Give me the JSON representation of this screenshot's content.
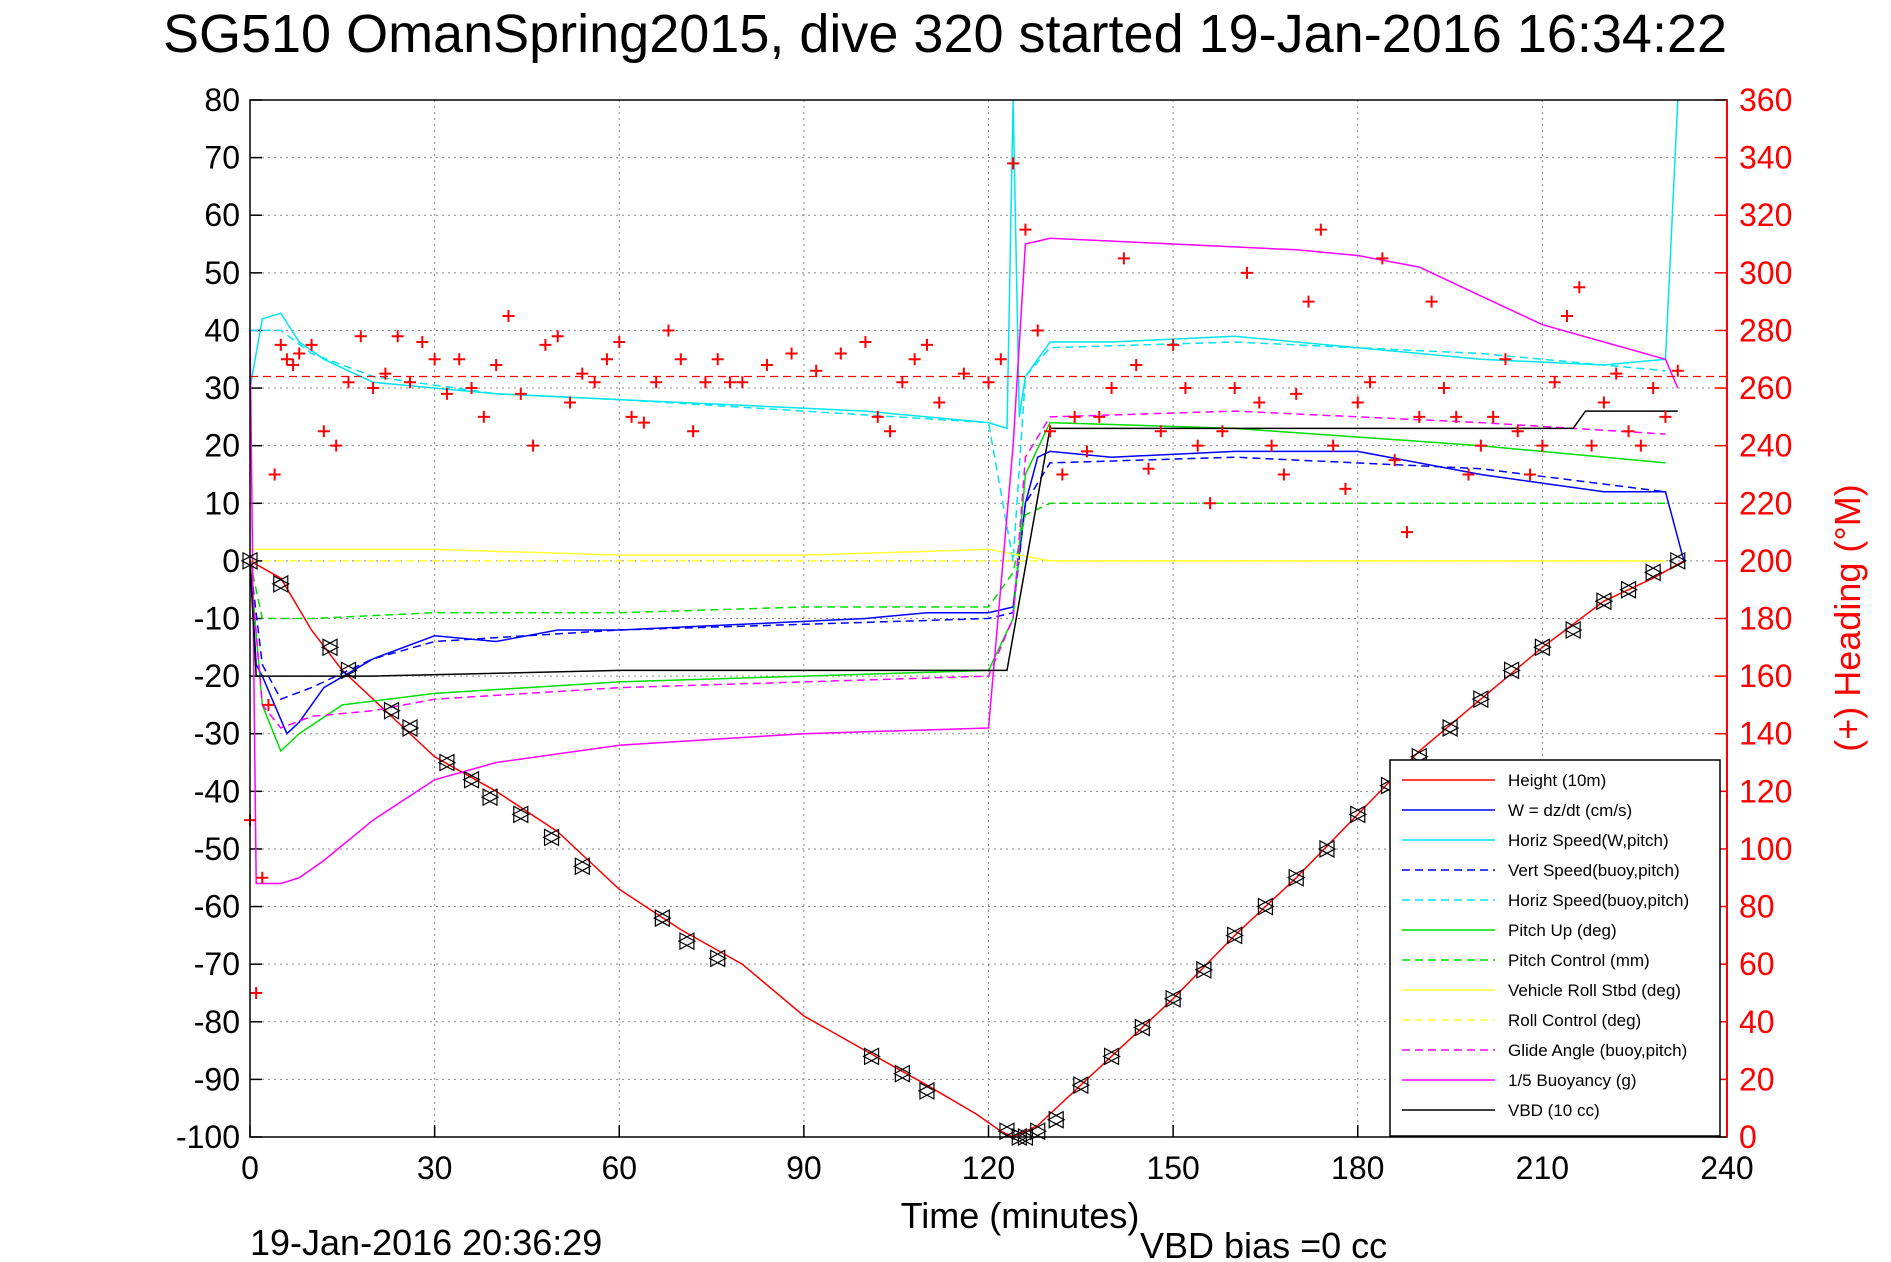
{
  "chart_data": {
    "type": "line",
    "title": "SG510 OmanSpring2015, dive 320 started 19-Jan-2016 16:34:22",
    "xlabel": "Time (minutes)",
    "ylabel_right": "(+) Heading (°M)",
    "xlim": [
      0,
      240
    ],
    "ylim_left": [
      -100,
      80
    ],
    "ylim_right": [
      0,
      360
    ],
    "x_ticks": [
      "0",
      "30",
      "60",
      "90",
      "120",
      "150",
      "180",
      "210",
      "240"
    ],
    "y_left_ticks": [
      "80",
      "70",
      "60",
      "50",
      "40",
      "30",
      "20",
      "10",
      "0",
      "-10",
      "-20",
      "-30",
      "-40",
      "-50",
      "-60",
      "-70",
      "-80",
      "-90",
      "-100"
    ],
    "y_right_ticks": [
      "360",
      "340",
      "320",
      "300",
      "280",
      "260",
      "240",
      "220",
      "200",
      "180",
      "160",
      "140",
      "120",
      "100",
      "80",
      "60",
      "40",
      "20",
      "0"
    ],
    "grid": true,
    "legend_position": "bottom-right",
    "colors": {
      "height": "#ff0000",
      "w": "#0000ff",
      "horiz_w": "#00e5ee",
      "vert_buoy": "#0000ff",
      "horiz_buoy": "#00e5ee",
      "pitch": "#00dd00",
      "pitch_ctl": "#00dd00",
      "roll": "#ffff33",
      "roll_ctl": "#ffff33",
      "glide": "#ff00ff",
      "buoy": "#ff00ff",
      "vbd": "#000000",
      "heading": "#ff0000"
    },
    "series": [
      {
        "name": "Height (10m)",
        "style": "solid",
        "color": "height",
        "x": [
          0,
          5,
          10,
          15,
          20,
          25,
          30,
          40,
          50,
          60,
          70,
          80,
          90,
          100,
          110,
          118,
          122,
          124,
          126,
          128,
          130,
          140,
          150,
          160,
          170,
          180,
          190,
          200,
          210,
          220,
          228,
          233
        ],
        "y": [
          0,
          -3,
          -12,
          -19,
          -24,
          -29,
          -34,
          -40,
          -47,
          -57,
          -64,
          -70,
          -79,
          -85,
          -91,
          -96,
          -99,
          -100,
          -99,
          -98,
          -96,
          -86,
          -76,
          -65,
          -55,
          -44,
          -33,
          -24,
          -15,
          -7,
          -3,
          0
        ]
      },
      {
        "name": "W = dz/dt (cm/s)",
        "style": "solid",
        "color": "w",
        "x": [
          0,
          1,
          2,
          4,
          6,
          8,
          12,
          20,
          30,
          40,
          50,
          60,
          80,
          100,
          110,
          120,
          124,
          126,
          128,
          130,
          140,
          160,
          180,
          200,
          220,
          230,
          233
        ],
        "y": [
          0,
          -18,
          -20,
          -25,
          -30,
          -28,
          -22,
          -17,
          -13,
          -14,
          -12,
          -12,
          -11,
          -10,
          -9,
          -9,
          -8,
          10,
          18,
          19,
          18,
          19,
          19,
          15,
          12,
          12,
          0
        ]
      },
      {
        "name": "Horiz Speed(W,pitch)",
        "style": "solid",
        "color": "horiz_w",
        "x": [
          0,
          2,
          5,
          8,
          12,
          20,
          30,
          40,
          60,
          80,
          100,
          110,
          120,
          123,
          124,
          125,
          126,
          128,
          130,
          140,
          160,
          180,
          200,
          220,
          230,
          232
        ],
        "y": [
          30,
          42,
          43,
          38,
          35,
          31,
          30,
          29,
          28,
          27,
          26,
          25,
          24,
          23,
          80,
          25,
          32,
          35,
          38,
          38,
          39,
          37,
          35,
          34,
          35,
          80
        ]
      },
      {
        "name": "Vert Speed(buoy,pitch)",
        "style": "dashed",
        "color": "vert_buoy",
        "x": [
          0,
          2,
          5,
          10,
          20,
          30,
          60,
          90,
          120,
          124,
          126,
          130,
          160,
          200,
          230
        ],
        "y": [
          0,
          -18,
          -24,
          -22,
          -17,
          -14,
          -12,
          -11,
          -10,
          -9,
          10,
          17,
          18,
          16,
          12
        ]
      },
      {
        "name": "Horiz Speed(buoy,pitch)",
        "style": "dashed",
        "color": "horiz_buoy",
        "x": [
          0,
          5,
          10,
          20,
          40,
          60,
          90,
          120,
          124,
          126,
          130,
          160,
          200,
          230
        ],
        "y": [
          40,
          40,
          36,
          32,
          29,
          28,
          26,
          24,
          0,
          32,
          37,
          38,
          36,
          33
        ]
      },
      {
        "name": "Pitch Up (deg)",
        "style": "solid",
        "color": "pitch",
        "x": [
          0,
          2,
          5,
          8,
          15,
          30,
          60,
          90,
          120,
          124,
          126,
          130,
          160,
          200,
          230
        ],
        "y": [
          0,
          -25,
          -33,
          -30,
          -25,
          -23,
          -21,
          -20,
          -19,
          -10,
          15,
          24,
          23,
          20,
          17
        ]
      },
      {
        "name": "Pitch Control (mm)",
        "style": "dashed",
        "color": "pitch_ctl",
        "x": [
          0,
          2,
          10,
          30,
          60,
          90,
          120,
          124,
          126,
          130,
          160,
          200,
          230
        ],
        "y": [
          0,
          -10,
          -10,
          -9,
          -9,
          -8,
          -8,
          -2,
          8,
          10,
          10,
          10,
          10
        ]
      },
      {
        "name": "Vehicle Roll Stbd (deg)",
        "style": "solid",
        "color": "roll",
        "x": [
          0,
          10,
          30,
          60,
          90,
          120,
          130,
          160,
          190,
          210,
          230
        ],
        "y": [
          2,
          2,
          2,
          1,
          1,
          2,
          0,
          0,
          0,
          0,
          0
        ]
      },
      {
        "name": "Roll Control (deg)",
        "style": "dashed",
        "color": "roll_ctl",
        "x": [
          0,
          10,
          30,
          60,
          90,
          120,
          130,
          160,
          190,
          210,
          230
        ],
        "y": [
          0,
          0,
          0,
          0,
          0,
          0,
          0,
          0,
          0,
          0,
          0
        ]
      },
      {
        "name": "Glide Angle (buoy,pitch)",
        "style": "dashed",
        "color": "glide",
        "x": [
          0,
          2,
          5,
          10,
          20,
          30,
          60,
          90,
          120,
          124,
          126,
          130,
          160,
          200,
          230
        ],
        "y": [
          0,
          -25,
          -29,
          -27,
          -26,
          -24,
          -22,
          -21,
          -20,
          -10,
          18,
          25,
          26,
          24,
          22
        ]
      },
      {
        "name": "1/5 Buoyancy (g)",
        "style": "solid",
        "color": "buoy",
        "x": [
          0,
          1,
          5,
          8,
          12,
          20,
          30,
          40,
          60,
          90,
          120,
          124,
          126,
          130,
          150,
          170,
          180,
          190,
          200,
          210,
          220,
          230,
          232
        ],
        "y": [
          40,
          -56,
          -56,
          -55,
          -52,
          -45,
          -38,
          -35,
          -32,
          -30,
          -29,
          20,
          55,
          56,
          55,
          54,
          53,
          51,
          46,
          41,
          38,
          35,
          30
        ]
      },
      {
        "name": "VBD (10 cc)",
        "style": "solid",
        "color": "vbd",
        "x": [
          0,
          1,
          20,
          60,
          100,
          120,
          123,
          130,
          160,
          200,
          215,
          217,
          230,
          232
        ],
        "y": [
          0,
          -20,
          -20,
          -19,
          -19,
          -19,
          -19,
          23,
          23,
          23,
          23,
          26,
          26,
          26
        ]
      }
    ],
    "heading_series": {
      "name": "Heading",
      "marker": "+",
      "axis": "right",
      "x": [
        0,
        1,
        2,
        3,
        4,
        5,
        6,
        7,
        8,
        10,
        12,
        14,
        16,
        18,
        20,
        22,
        24,
        26,
        28,
        30,
        32,
        34,
        36,
        38,
        40,
        42,
        44,
        46,
        48,
        50,
        52,
        54,
        56,
        58,
        60,
        62,
        64,
        66,
        68,
        70,
        72,
        74,
        76,
        78,
        80,
        84,
        88,
        92,
        96,
        100,
        102,
        104,
        106,
        108,
        110,
        112,
        116,
        120,
        122,
        124,
        126,
        128,
        130,
        132,
        134,
        136,
        138,
        140,
        142,
        144,
        146,
        148,
        150,
        152,
        154,
        156,
        158,
        160,
        162,
        164,
        166,
        168,
        170,
        172,
        174,
        176,
        178,
        180,
        182,
        184,
        186,
        188,
        190,
        192,
        194,
        196,
        198,
        200,
        202,
        204,
        206,
        208,
        210,
        212,
        214,
        216,
        218,
        220,
        222,
        224,
        226,
        228,
        230,
        232
      ],
      "y": [
        110,
        50,
        90,
        150,
        230,
        275,
        270,
        268,
        272,
        275,
        245,
        240,
        262,
        278,
        260,
        265,
        278,
        262,
        276,
        270,
        258,
        270,
        260,
        250,
        268,
        285,
        258,
        240,
        275,
        278,
        255,
        265,
        262,
        270,
        276,
        250,
        248,
        262,
        280,
        270,
        245,
        262,
        270,
        262,
        262,
        268,
        272,
        266,
        272,
        276,
        250,
        245,
        262,
        270,
        275,
        255,
        265,
        262,
        270,
        338,
        315,
        280,
        245,
        230,
        250,
        238,
        250,
        260,
        305,
        268,
        232,
        245,
        275,
        260,
        240,
        220,
        245,
        260,
        300,
        255,
        240,
        230,
        258,
        290,
        315,
        240,
        225,
        255,
        262,
        305,
        235,
        210,
        250,
        290,
        260,
        250,
        230,
        240,
        250,
        270,
        245,
        230,
        240,
        262,
        285,
        295,
        240,
        255,
        265,
        245,
        240,
        260,
        250,
        266
      ]
    },
    "markers": {
      "name": "Height markers",
      "x": [
        0,
        5,
        13,
        16,
        23,
        26,
        32,
        36,
        39,
        44,
        49,
        54,
        67,
        71,
        76,
        101,
        106,
        110,
        123,
        125,
        126,
        128,
        131,
        135,
        140,
        145,
        150,
        155,
        160,
        165,
        170,
        175,
        180,
        185,
        190,
        195,
        200,
        205,
        210,
        215,
        220,
        224,
        228,
        232
      ],
      "y": [
        0,
        -4,
        -15,
        -19,
        -26,
        -29,
        -35,
        -38,
        -41,
        -44,
        -48,
        -53,
        -62,
        -66,
        -69,
        -86,
        -89,
        -92,
        -99,
        -100,
        -100,
        -99,
        -97,
        -91,
        -86,
        -81,
        -76,
        -71,
        -65,
        -60,
        -55,
        -50,
        -44,
        -39,
        -34,
        -29,
        -24,
        -19,
        -15,
        -12,
        -7,
        -5,
        -2,
        0
      ]
    },
    "footer_left": "19-Jan-2016 20:36:29",
    "footer_right": "VBD bias =0 cc"
  }
}
